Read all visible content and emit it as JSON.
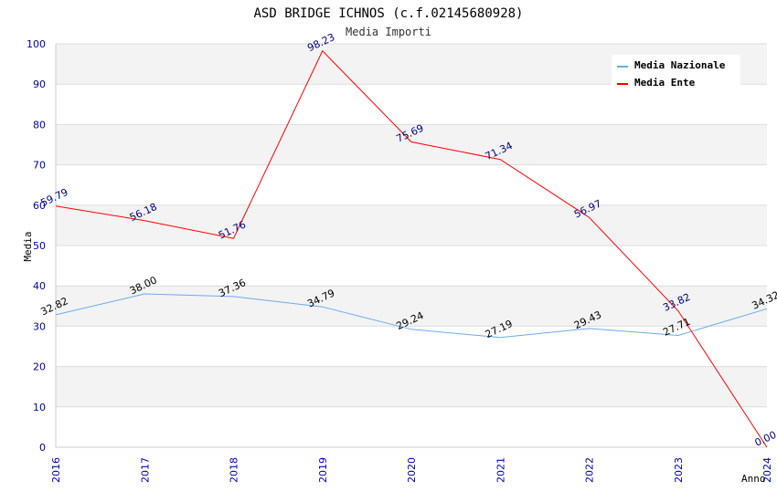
{
  "chart_data": {
    "type": "line",
    "title": "ASD BRIDGE ICHNOS (c.f.02145680928)",
    "subtitle": "Media Importi",
    "xlabel": "Anno",
    "ylabel": "Media",
    "ylim": [
      0,
      100
    ],
    "yticks": [
      "0",
      "10",
      "20",
      "30",
      "40",
      "50",
      "60",
      "70",
      "80",
      "90",
      "100"
    ],
    "categories": [
      "2016",
      "2017",
      "2018",
      "2019",
      "2020",
      "2021",
      "2022",
      "2023",
      "2024"
    ],
    "series": [
      {
        "name": "Media Nazionale",
        "color": "#6aaaee",
        "values": [
          32.82,
          38.0,
          37.36,
          34.79,
          29.24,
          27.19,
          29.43,
          27.71,
          34.32
        ],
        "labels": [
          "32.82",
          "38.00",
          "37.36",
          "34.79",
          "29.24",
          "27.19",
          "29.43",
          "27.71",
          "34.32"
        ]
      },
      {
        "name": "Media Ente",
        "color": "#ff0000",
        "values": [
          59.79,
          56.18,
          51.76,
          98.23,
          75.69,
          71.34,
          56.97,
          33.82,
          0.0
        ],
        "labels": [
          "59.79",
          "56.18",
          "51.76",
          "98.23",
          "75.69",
          "71.34",
          "56.97",
          "33.82",
          "0.00"
        ]
      }
    ],
    "legend": "top-right",
    "grid": true
  }
}
